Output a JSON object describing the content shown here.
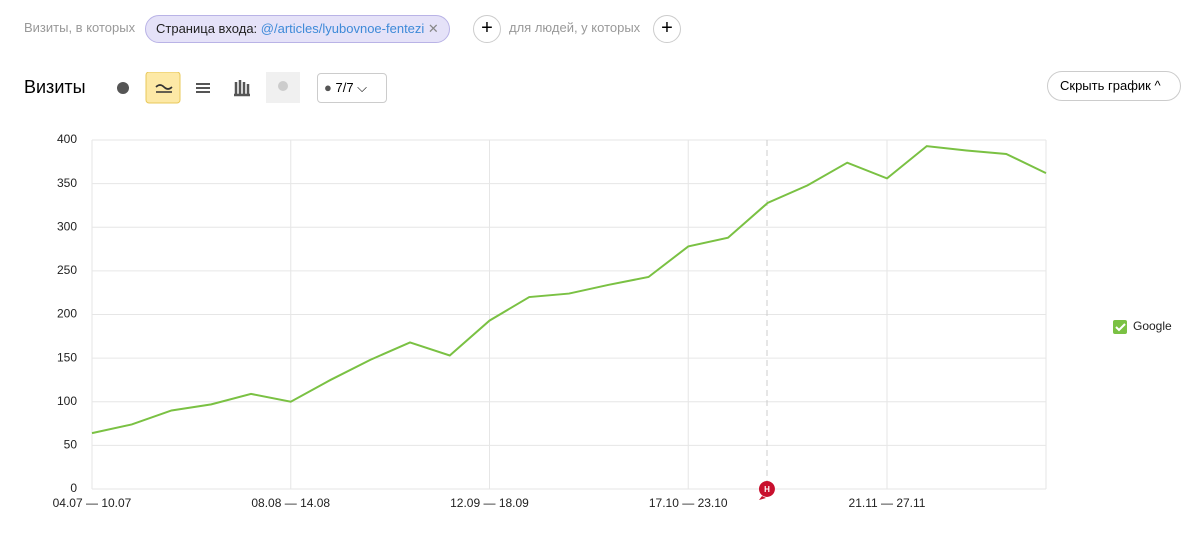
{
  "filter_bar": {
    "prefix": "Визиты, в которых",
    "chip_label": "Страница входа:",
    "chip_value": "@/articles/lyubovnoe-fentezi",
    "people_label": "для людей, у которых"
  },
  "toolbar": {
    "title": "Визиты",
    "counter": "7/7",
    "hide_button": "Скрыть график"
  },
  "chart_data": {
    "type": "line",
    "categories": [
      "04.07 — 10.07",
      null,
      null,
      null,
      null,
      "08.08 — 14.08",
      null,
      null,
      null,
      null,
      "12.09 — 18.09",
      null,
      null,
      null,
      null,
      "17.10 — 23.10",
      null,
      null,
      null,
      null,
      "21.11 — 27.11",
      null,
      null,
      null,
      null
    ],
    "series": [
      {
        "name": "Google",
        "color": "#7ac143",
        "values": [
          64,
          74,
          90,
          97,
          109,
          100,
          125,
          148,
          168,
          153,
          193,
          220,
          224,
          234,
          243,
          278,
          288,
          328,
          348,
          374,
          356,
          393,
          388,
          384,
          362
        ]
      }
    ],
    "ylim": [
      0,
      400
    ],
    "yticks": [
      0,
      50,
      100,
      150,
      200,
      250,
      300,
      350,
      400
    ],
    "grid": true,
    "legend": "right",
    "annotation_label": "Н"
  }
}
